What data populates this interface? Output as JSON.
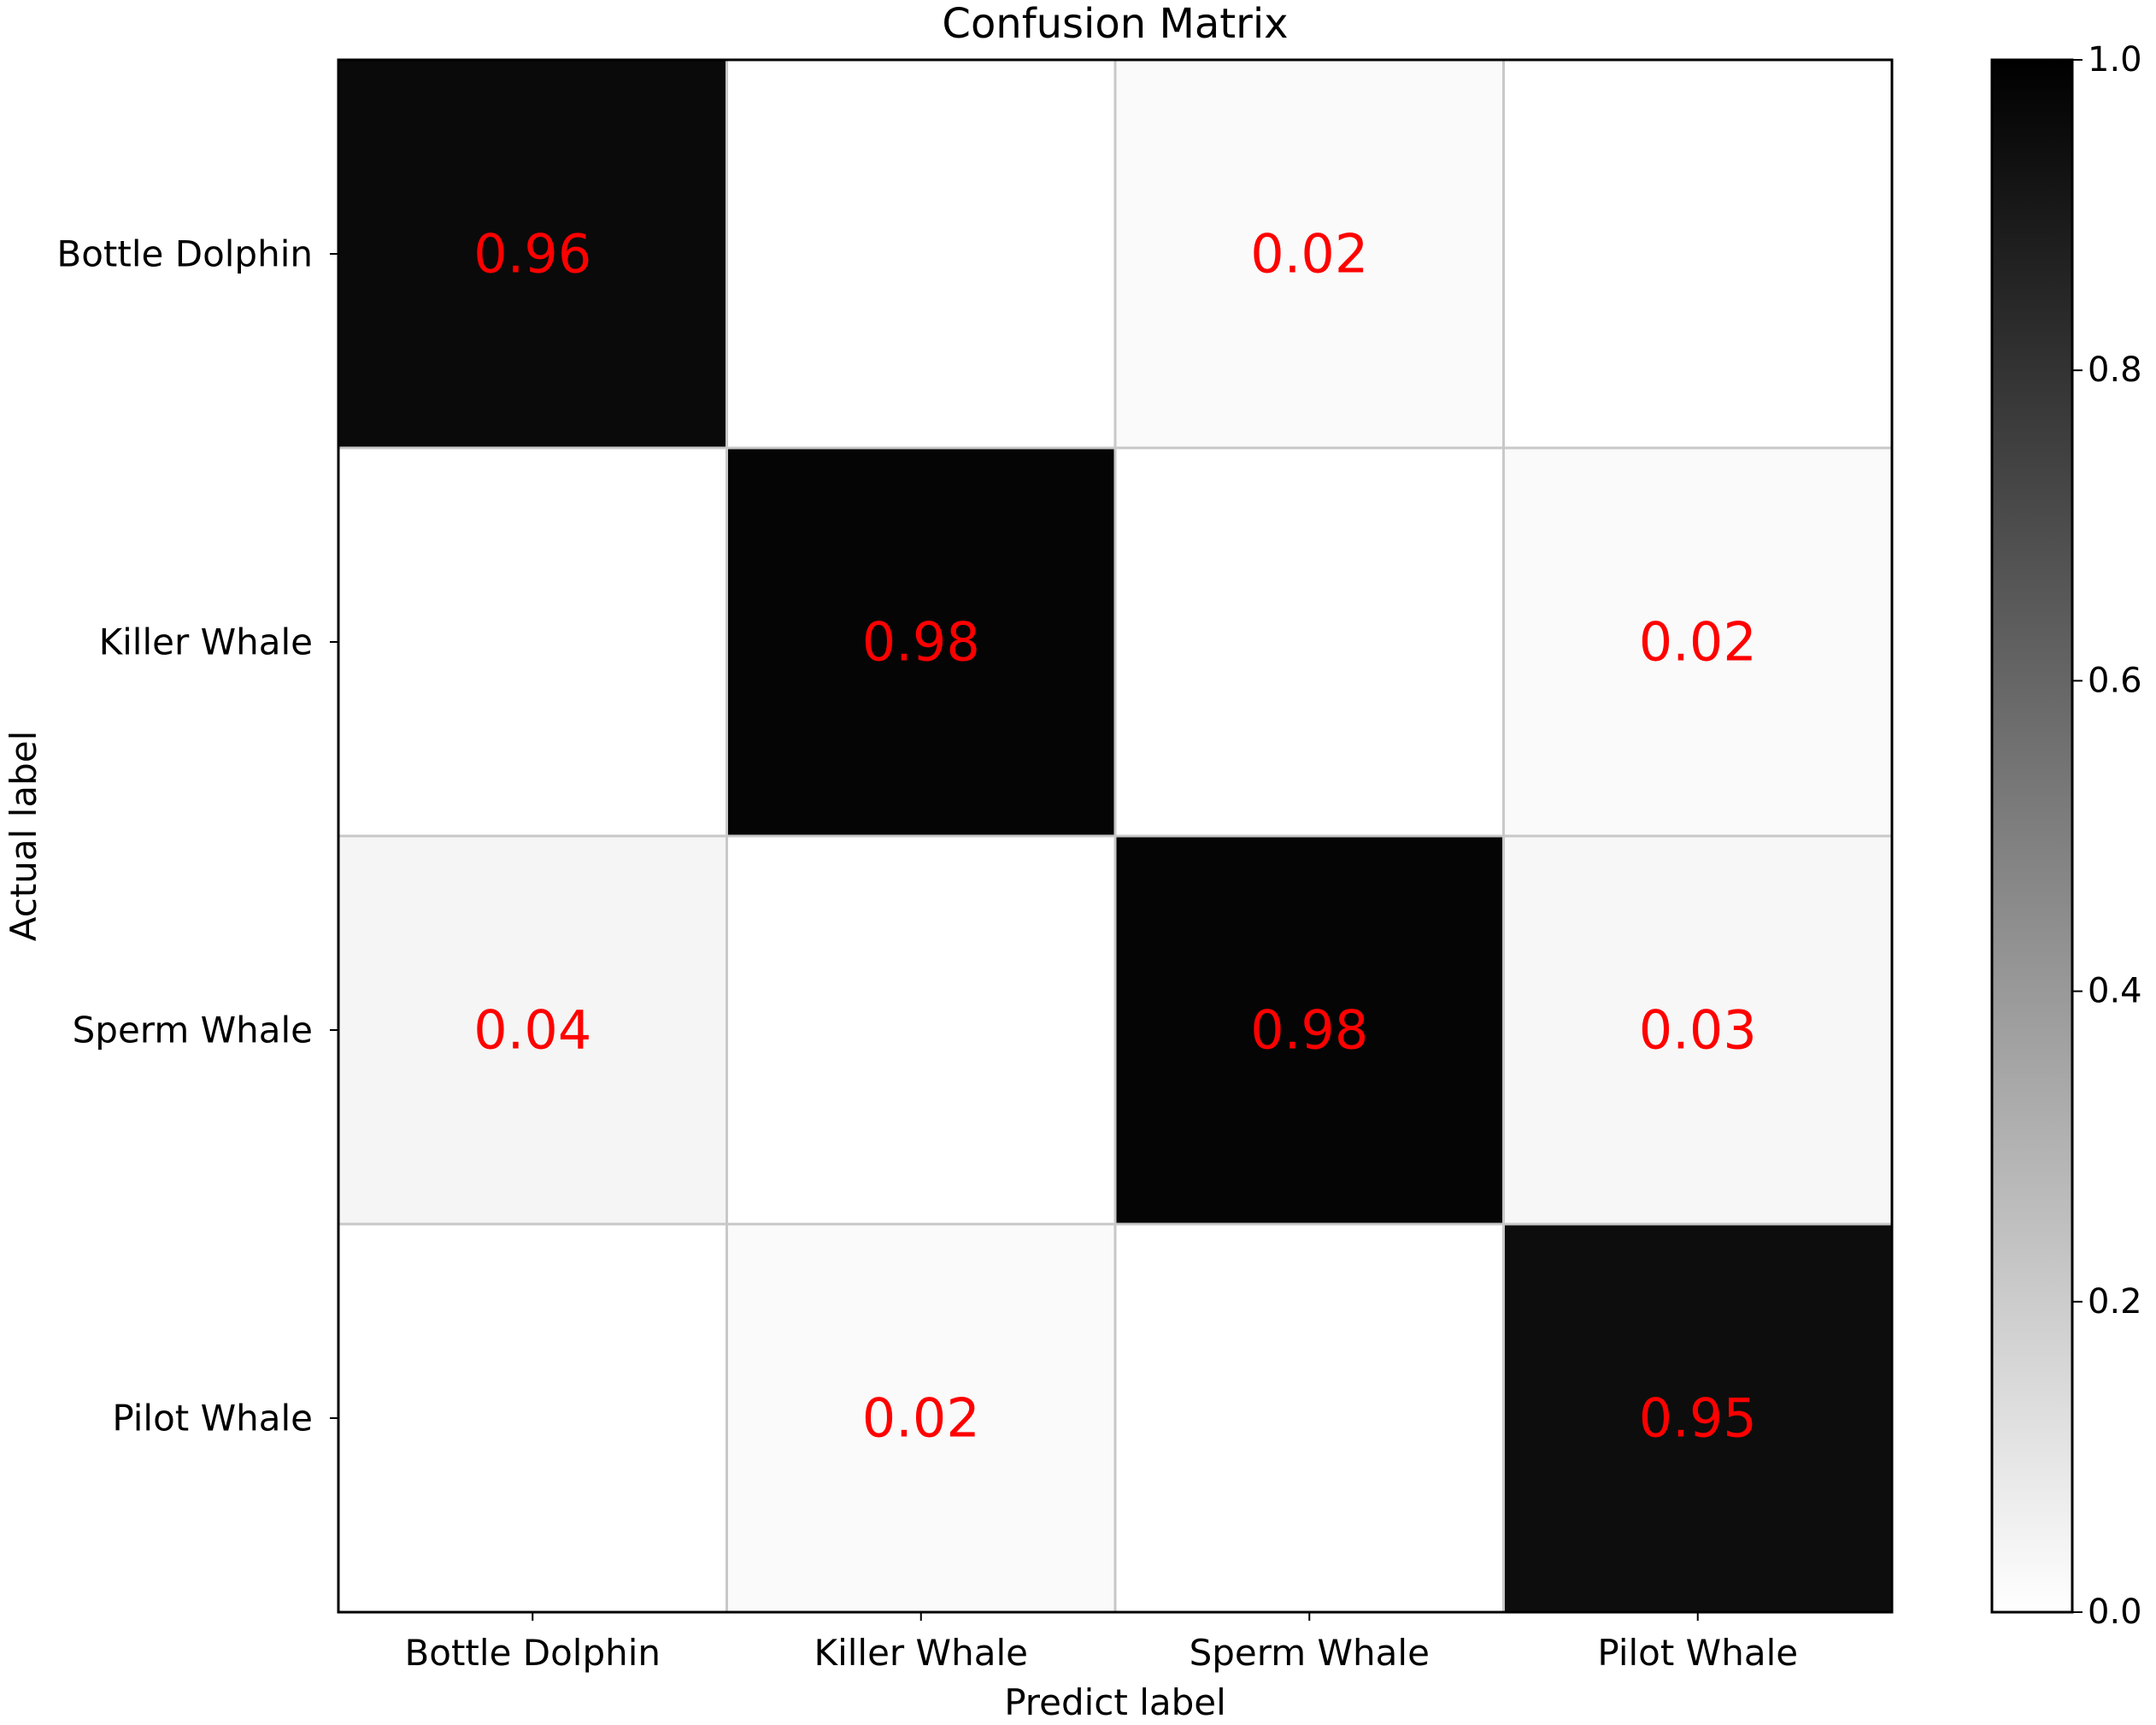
{
  "chart_data": {
    "type": "heatmap",
    "title": "Confusion Matrix",
    "xlabel": "Predict label",
    "ylabel": "Actual label",
    "x_categories": [
      "Bottle Dolphin",
      "Killer Whale",
      "Sperm Whale",
      "Pilot Whale"
    ],
    "y_categories": [
      "Bottle Dolphin",
      "Killer Whale",
      "Sperm Whale",
      "Pilot Whale"
    ],
    "values": [
      [
        0.96,
        0.0,
        0.02,
        0.0
      ],
      [
        0.0,
        0.98,
        0.0,
        0.02
      ],
      [
        0.04,
        0.0,
        0.98,
        0.03
      ],
      [
        0.0,
        0.02,
        0.0,
        0.95
      ]
    ],
    "cell_labels": [
      [
        "0.96",
        "",
        "0.02",
        ""
      ],
      [
        "",
        "0.98",
        "",
        "0.02"
      ],
      [
        "0.04",
        "",
        "0.98",
        "0.03"
      ],
      [
        "",
        "0.02",
        "",
        "0.95"
      ]
    ],
    "colormap": "greys",
    "colorbar": {
      "range": [
        0.0,
        1.0
      ],
      "ticks": [
        0.0,
        0.2,
        0.4,
        0.6,
        0.8,
        1.0
      ],
      "tick_labels": [
        "0.0",
        "0.2",
        "0.4",
        "0.6",
        "0.8",
        "1.0"
      ]
    },
    "grid": true,
    "annotation_color": "#ff0000"
  }
}
